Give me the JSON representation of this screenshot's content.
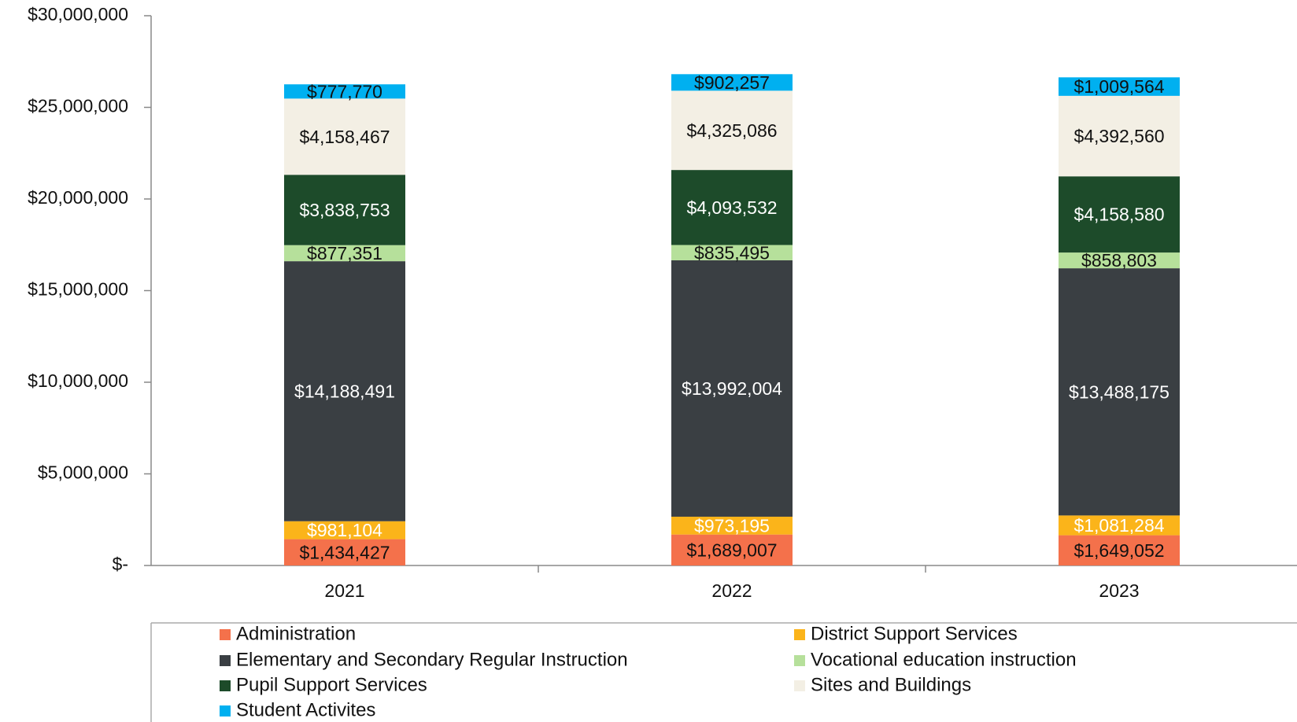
{
  "chart_data": {
    "type": "stacked_bar",
    "categories": [
      "2021",
      "2022",
      "2023"
    ],
    "ylim": [
      0,
      30000000
    ],
    "yticks": [
      {
        "value": 0,
        "label": "$-"
      },
      {
        "value": 5000000,
        "label": "$5,000,000"
      },
      {
        "value": 10000000,
        "label": "$10,000,000"
      },
      {
        "value": 15000000,
        "label": "$15,000,000"
      },
      {
        "value": 20000000,
        "label": "$20,000,000"
      },
      {
        "value": 25000000,
        "label": "$25,000,000"
      },
      {
        "value": 30000000,
        "label": "$30,000,000"
      }
    ],
    "series": [
      {
        "name": "Administration",
        "color": "#f4714b",
        "label_color": "#111111",
        "values": [
          1434427,
          1689007,
          1649052
        ],
        "value_labels": [
          "$1,434,427",
          "$1,689,007",
          "$1,649,052"
        ]
      },
      {
        "name": "District Support Services",
        "color": "#fbb41a",
        "label_color": "#ffffff",
        "values": [
          981104,
          973195,
          1081284
        ],
        "value_labels": [
          "$981,104",
          "$973,195",
          "$1,081,284"
        ]
      },
      {
        "name": "Elementary and Secondary Regular Instruction",
        "color": "#3a3f43",
        "label_color": "#ffffff",
        "values": [
          14188491,
          13992004,
          13488175
        ],
        "value_labels": [
          "$14,188,491",
          "$13,992,004",
          "$13,488,175"
        ]
      },
      {
        "name": "Vocational education instruction",
        "color": "#b6e09b",
        "label_color": "#111111",
        "values": [
          877351,
          835495,
          858803
        ],
        "value_labels": [
          "$877,351",
          "$835,495",
          "$858,803"
        ]
      },
      {
        "name": "Pupil Support Services",
        "color": "#1d4b2a",
        "label_color": "#ffffff",
        "values": [
          3838753,
          4093532,
          4158580
        ],
        "value_labels": [
          "$3,838,753",
          "$4,093,532",
          "$4,158,580"
        ]
      },
      {
        "name": "Sites and Buildings",
        "color": "#f3efe4",
        "label_color": "#111111",
        "values": [
          4158467,
          4325086,
          4392560
        ],
        "value_labels": [
          "$4,158,467",
          "$4,325,086",
          "$4,392,560"
        ]
      },
      {
        "name": "Student Activites",
        "color": "#00b0f0",
        "label_color": "#111111",
        "values": [
          777770,
          902257,
          1009564
        ],
        "value_labels": [
          "$777,770",
          "$902,257",
          "$1,009,564"
        ]
      }
    ]
  }
}
